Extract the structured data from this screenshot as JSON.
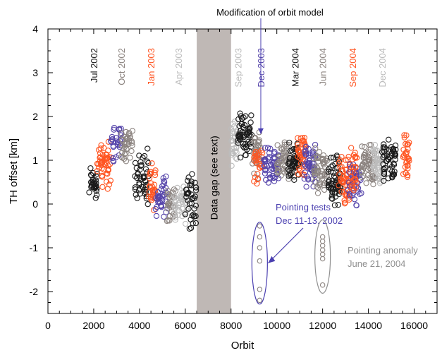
{
  "chart_data": {
    "type": "scatter",
    "xlabel": "Orbit",
    "ylabel": "TH offset [km]",
    "xlim": [
      0,
      17000
    ],
    "ylim": [
      -2.5,
      4.0
    ],
    "x_ticks": [
      0,
      2000,
      4000,
      6000,
      8000,
      10000,
      12000,
      14000,
      16000
    ],
    "y_ticks": [
      -2,
      -1,
      0,
      1,
      2,
      3,
      4
    ],
    "grid": false,
    "colors": {
      "black": "#1a1a1a",
      "gray": "#8c8480",
      "orange": "#ff5522",
      "blue": "#5544aa",
      "lightgray": "#bcbcbc",
      "gapfill": "#bfb8b5",
      "annotBlue": "#4a3fb0",
      "annotGray": "#909090"
    },
    "data_gap": {
      "x_start": 6500,
      "x_end": 8000,
      "label": "Data gap (see text)"
    },
    "month_labels": [
      {
        "text": "Jul 2002",
        "x": 2000,
        "color": "black"
      },
      {
        "text": "Oct 2002",
        "x": 3200,
        "color": "gray"
      },
      {
        "text": "Jan 2003",
        "x": 4500,
        "color": "orange"
      },
      {
        "text": "Apr 2003",
        "x": 5700,
        "color": "lightgray"
      },
      {
        "text": "Sep 2003",
        "x": 8300,
        "color": "lightgray"
      },
      {
        "text": "Dec 2003",
        "x": 9300,
        "color": "blue"
      },
      {
        "text": "Mar 2004",
        "x": 10800,
        "color": "black"
      },
      {
        "text": "Jun 2004",
        "x": 12000,
        "color": "gray"
      },
      {
        "text": "Sep 2004",
        "x": 13300,
        "color": "orange"
      },
      {
        "text": "Dec 2004",
        "x": 14600,
        "color": "lightgray"
      }
    ],
    "annotations": {
      "model_change": "Modification of orbit model",
      "pointing_tests": [
        "Pointing tests",
        "Dec 11-13, 2002"
      ],
      "pointing_anomaly": [
        "Pointing anomaly",
        "June 21, 2004"
      ]
    },
    "series": [
      {
        "color": "black",
        "x_start": 1800,
        "x_end": 2150,
        "y_center": 0.5,
        "y_spread": 0.9,
        "n": 30
      },
      {
        "color": "orange",
        "x_start": 2150,
        "x_end": 2750,
        "y_center": 0.9,
        "y_spread": 1.1,
        "n": 50
      },
      {
        "color": "blue",
        "x_start": 2750,
        "x_end": 3200,
        "y_center": 1.4,
        "y_spread": 0.9,
        "n": 30
      },
      {
        "color": "gray",
        "x_start": 3200,
        "x_end": 3700,
        "y_center": 1.4,
        "y_spread": 0.8,
        "n": 35
      },
      {
        "color": "black",
        "x_start": 3800,
        "x_end": 4400,
        "y_center": 0.6,
        "y_spread": 1.2,
        "n": 45
      },
      {
        "color": "orange",
        "x_start": 4400,
        "x_end": 4700,
        "y_center": 0.3,
        "y_spread": 1.1,
        "n": 30
      },
      {
        "color": "blue",
        "x_start": 4700,
        "x_end": 5200,
        "y_center": 0.2,
        "y_spread": 1.0,
        "n": 35
      },
      {
        "color": "gray",
        "x_start": 5200,
        "x_end": 5600,
        "y_center": 0.0,
        "y_spread": 0.7,
        "n": 30
      },
      {
        "color": "lightgray",
        "x_start": 5500,
        "x_end": 6100,
        "y_center": 0.0,
        "y_spread": 0.8,
        "n": 40
      },
      {
        "color": "black",
        "x_start": 6000,
        "x_end": 6500,
        "y_center": 0.1,
        "y_spread": 1.4,
        "n": 40
      },
      {
        "color": "lightgray",
        "x_start": 8000,
        "x_end": 8300,
        "y_center": 1.4,
        "y_spread": 1.0,
        "n": 30
      },
      {
        "color": "black",
        "x_start": 8300,
        "x_end": 8900,
        "y_center": 1.6,
        "y_spread": 1.0,
        "n": 60
      },
      {
        "color": "gray",
        "x_start": 8900,
        "x_end": 9300,
        "y_center": 1.1,
        "y_spread": 1.0,
        "n": 35
      },
      {
        "color": "orange",
        "x_start": 9000,
        "x_end": 9400,
        "y_center": 1.0,
        "y_spread": 1.0,
        "n": 25
      },
      {
        "color": "blue",
        "x_start": 9400,
        "x_end": 10100,
        "y_center": 0.9,
        "y_spread": 0.8,
        "n": 55
      },
      {
        "color": "gray",
        "x_start": 10000,
        "x_end": 10600,
        "y_center": 1.0,
        "y_spread": 0.8,
        "n": 50
      },
      {
        "color": "black",
        "x_start": 10500,
        "x_end": 11000,
        "y_center": 1.0,
        "y_spread": 0.8,
        "n": 50
      },
      {
        "color": "orange",
        "x_start": 10900,
        "x_end": 11300,
        "y_center": 1.1,
        "y_spread": 0.9,
        "n": 40
      },
      {
        "color": "blue",
        "x_start": 11200,
        "x_end": 11700,
        "y_center": 0.9,
        "y_spread": 0.9,
        "n": 50
      },
      {
        "color": "gray",
        "x_start": 11600,
        "x_end": 12200,
        "y_center": 0.7,
        "y_spread": 1.0,
        "n": 55
      },
      {
        "color": "black",
        "x_start": 12200,
        "x_end": 12800,
        "y_center": 0.5,
        "y_spread": 1.1,
        "n": 60
      },
      {
        "color": "orange",
        "x_start": 12700,
        "x_end": 13200,
        "y_center": 0.5,
        "y_spread": 1.1,
        "n": 50
      },
      {
        "color": "blue",
        "x_start": 13100,
        "x_end": 13700,
        "y_center": 0.5,
        "y_spread": 1.0,
        "n": 50
      },
      {
        "color": "orange",
        "x_start": 13200,
        "x_end": 13500,
        "y_center": 0.8,
        "y_spread": 1.1,
        "n": 25
      },
      {
        "color": "gray",
        "x_start": 13700,
        "x_end": 14300,
        "y_center": 0.9,
        "y_spread": 0.9,
        "n": 55
      },
      {
        "color": "lightgray",
        "x_start": 14200,
        "x_end": 14700,
        "y_center": 0.9,
        "y_spread": 0.9,
        "n": 45
      },
      {
        "color": "black",
        "x_start": 14600,
        "x_end": 15200,
        "y_center": 1.0,
        "y_spread": 0.9,
        "n": 55
      },
      {
        "color": "orange",
        "x_start": 15500,
        "x_end": 15800,
        "y_center": 1.1,
        "y_spread": 0.9,
        "n": 30
      }
    ],
    "pointing_test_points": {
      "color": "gray",
      "points": [
        [
          9250,
          -0.5
        ],
        [
          9250,
          -0.75
        ],
        [
          9250,
          -1.0
        ],
        [
          9250,
          -1.3
        ],
        [
          9250,
          -1.95
        ],
        [
          9250,
          -2.2
        ]
      ]
    },
    "pointing_anomaly_points": {
      "color": "gray",
      "points": [
        [
          12000,
          -0.75
        ],
        [
          12000,
          -0.85
        ],
        [
          12000,
          -0.95
        ],
        [
          12000,
          -1.05
        ],
        [
          12000,
          -1.15
        ],
        [
          12000,
          -1.25
        ],
        [
          12000,
          -1.85
        ]
      ]
    }
  }
}
